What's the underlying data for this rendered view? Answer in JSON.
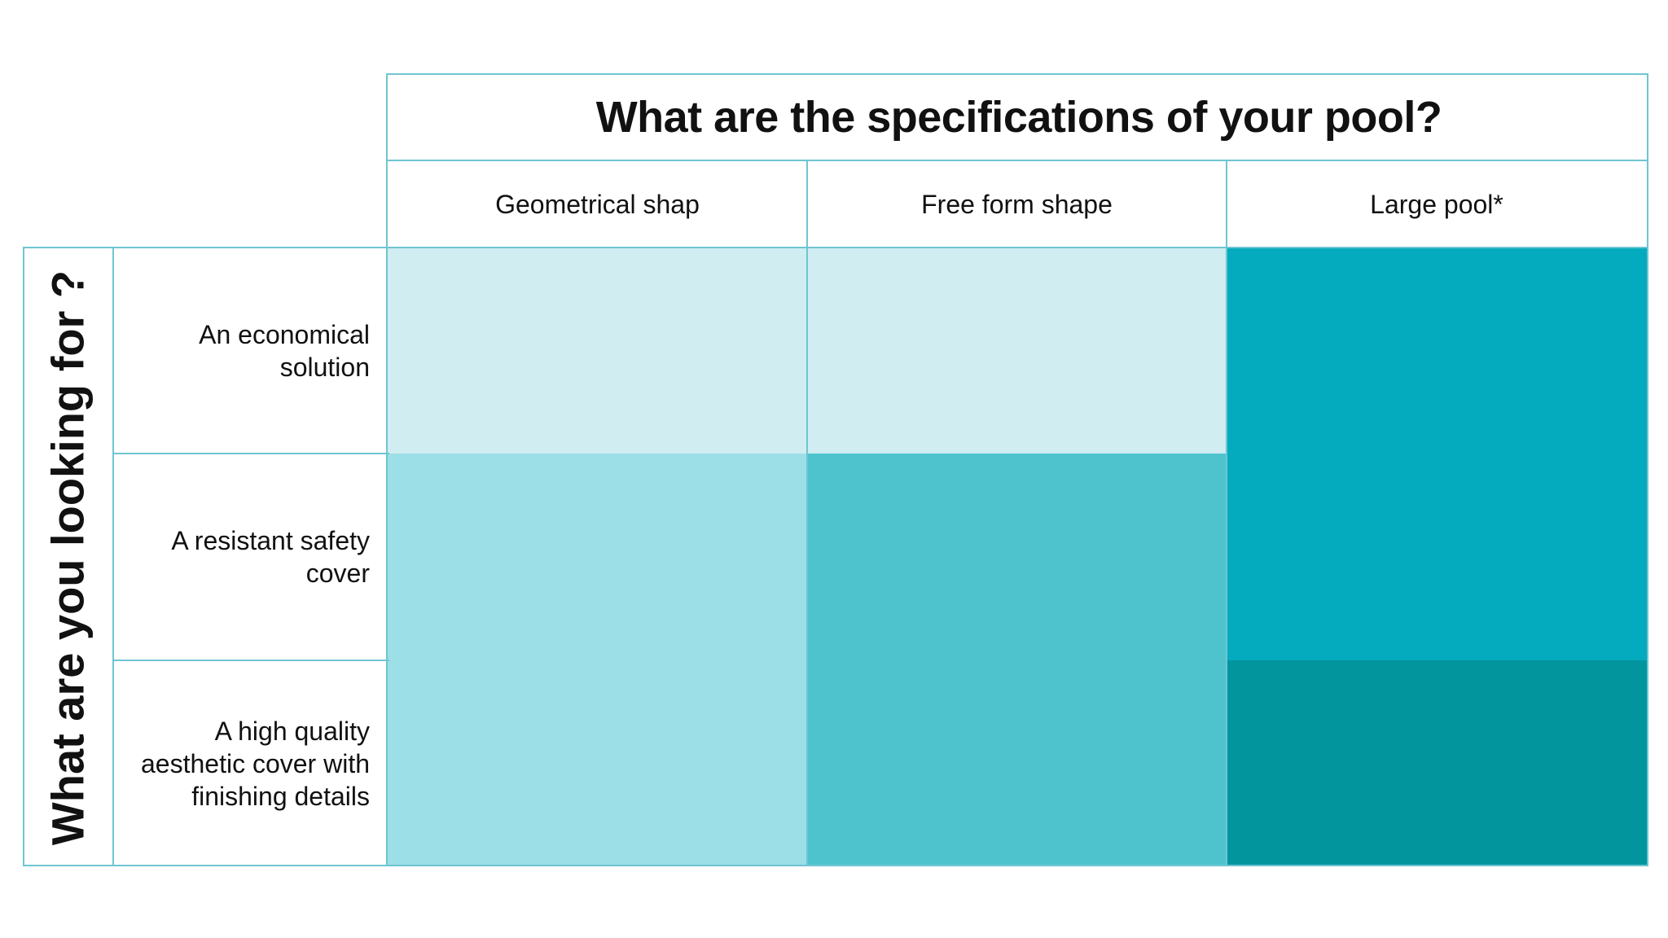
{
  "title_top": "What are the specifications of your pool?",
  "title_side": "What are you looking for ?",
  "columns": [
    {
      "label": "Geometrical shap"
    },
    {
      "label": "Free form shape"
    },
    {
      "label": "Large pool*"
    }
  ],
  "rows": [
    {
      "label": "An economical solution"
    },
    {
      "label": "A resistant safety cover"
    },
    {
      "label": "A high quality aesthetic cover with finishing details"
    }
  ],
  "palette": {
    "lightest": "#d0edf2",
    "light": "#9cdfe6",
    "medium": "#4fc3cd",
    "dark": "#04aabe",
    "darkest": "#02959e",
    "border": "#6fc5d1"
  },
  "cell_colors": [
    [
      "#d0edf2",
      "#d0edf2",
      "#04aabe"
    ],
    [
      "#9cdfe6",
      "#4fc3cd",
      "#04aabe"
    ],
    [
      "#9cdfe6",
      "#4fc3cd",
      "#02959e"
    ]
  ]
}
